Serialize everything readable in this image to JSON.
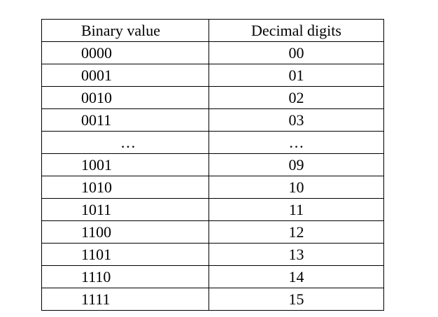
{
  "table": {
    "headers": [
      "Binary value",
      "Decimal digits"
    ],
    "rows": [
      [
        "0000",
        "00"
      ],
      [
        "0001",
        "01"
      ],
      [
        "0010",
        "02"
      ],
      [
        "0011",
        "03"
      ],
      [
        "…",
        "…"
      ],
      [
        "1001",
        "09"
      ],
      [
        "1010",
        "10"
      ],
      [
        "1011",
        "11"
      ],
      [
        "1100",
        "12"
      ],
      [
        "1101",
        "13"
      ],
      [
        "1110",
        "14"
      ],
      [
        "1111",
        "15"
      ]
    ]
  }
}
